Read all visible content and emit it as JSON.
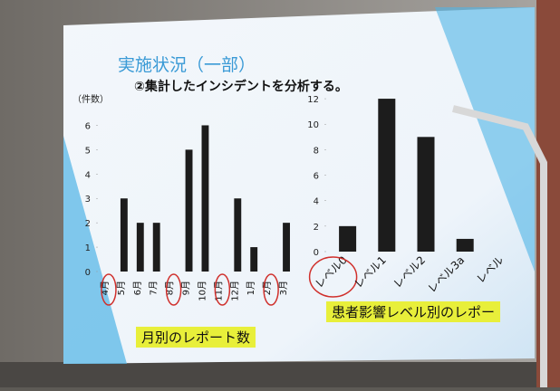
{
  "slide": {
    "title": "実施状況（一部）",
    "subtitle": "②集計したインシデントを分析する。"
  },
  "chart_data": [
    {
      "type": "bar",
      "title": "月別のレポート数",
      "y_label": "（件数）",
      "categories": [
        "4月",
        "5月",
        "6月",
        "7月",
        "8月",
        "9月",
        "10月",
        "11月",
        "12月",
        "1月",
        "2月",
        "3月"
      ],
      "values": [
        0,
        3,
        2,
        2,
        0,
        5,
        6,
        0,
        3,
        1,
        0,
        2
      ],
      "color": "#1c1c1c",
      "circled": [
        0,
        4,
        7,
        10
      ],
      "circle_color": "#d0302c",
      "ylim": [
        0,
        6.5
      ],
      "yticks": [
        0,
        1,
        2,
        3,
        4,
        5,
        6
      ],
      "grid": false,
      "label_rotation": -90
    },
    {
      "type": "bar",
      "title": "患者影響レベル別のレポー",
      "categories": [
        "レベル0",
        "レベル1",
        "レベル2",
        "レベル3a",
        "レベル"
      ],
      "values": [
        2,
        12,
        9,
        1,
        null
      ],
      "color": "#1c1c1c",
      "circled": [
        0
      ],
      "circle_color": "#d0302c",
      "ylim": [
        0,
        13
      ],
      "yticks": [
        0,
        2,
        4,
        6,
        8,
        10,
        12
      ],
      "grid": false,
      "label_rotation": -45
    }
  ]
}
